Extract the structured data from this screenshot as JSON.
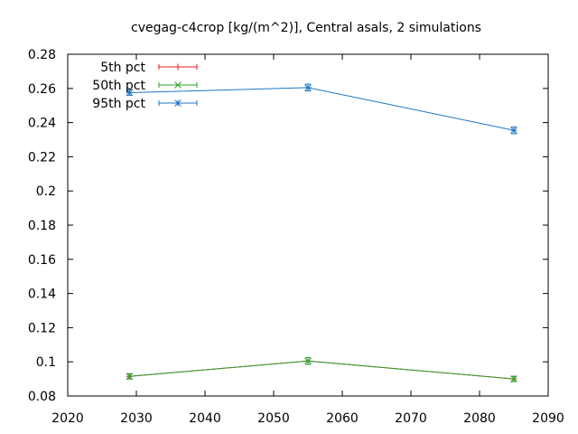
{
  "chart_data": {
    "type": "line",
    "title": "cvegag-c4crop [kg/(m^2)], Central asals, 2 simulations",
    "xlabel": "",
    "ylabel": "",
    "xlim": [
      2020,
      2090
    ],
    "ylim": [
      0.08,
      0.28
    ],
    "x_ticks": [
      2020,
      2030,
      2040,
      2050,
      2060,
      2070,
      2080,
      2090
    ],
    "y_ticks": [
      0.08,
      0.1,
      0.12,
      0.14,
      0.16,
      0.18,
      0.2,
      0.22,
      0.24,
      0.26,
      0.28
    ],
    "x_tick_labels": [
      "2020",
      "2030",
      "2040",
      "2050",
      "2060",
      "2070",
      "2080",
      "2090"
    ],
    "y_tick_labels": [
      "0.08",
      "0.1",
      "0.12",
      "0.14",
      "0.16",
      "0.18",
      "0.2",
      "0.22",
      "0.24",
      "0.26",
      "0.28"
    ],
    "grid": false,
    "legend_position": "top-left",
    "x": [
      2029,
      2055,
      2085
    ],
    "series": [
      {
        "name": "5th pct",
        "color": "#e41a1c",
        "marker": "plus",
        "values": [
          0.0915,
          0.1005,
          0.09
        ],
        "errors": [
          0.0015,
          0.002,
          0.0015
        ]
      },
      {
        "name": "50th pct",
        "color": "#2ca02c",
        "marker": "cross",
        "values": [
          0.0915,
          0.1005,
          0.09
        ],
        "errors": [
          0.0015,
          0.002,
          0.0015
        ]
      },
      {
        "name": "95th pct",
        "color": "#1f77c4",
        "marker": "asterisk",
        "values": [
          0.2575,
          0.2605,
          0.2355
        ],
        "errors": [
          0.0015,
          0.002,
          0.002
        ]
      }
    ]
  }
}
